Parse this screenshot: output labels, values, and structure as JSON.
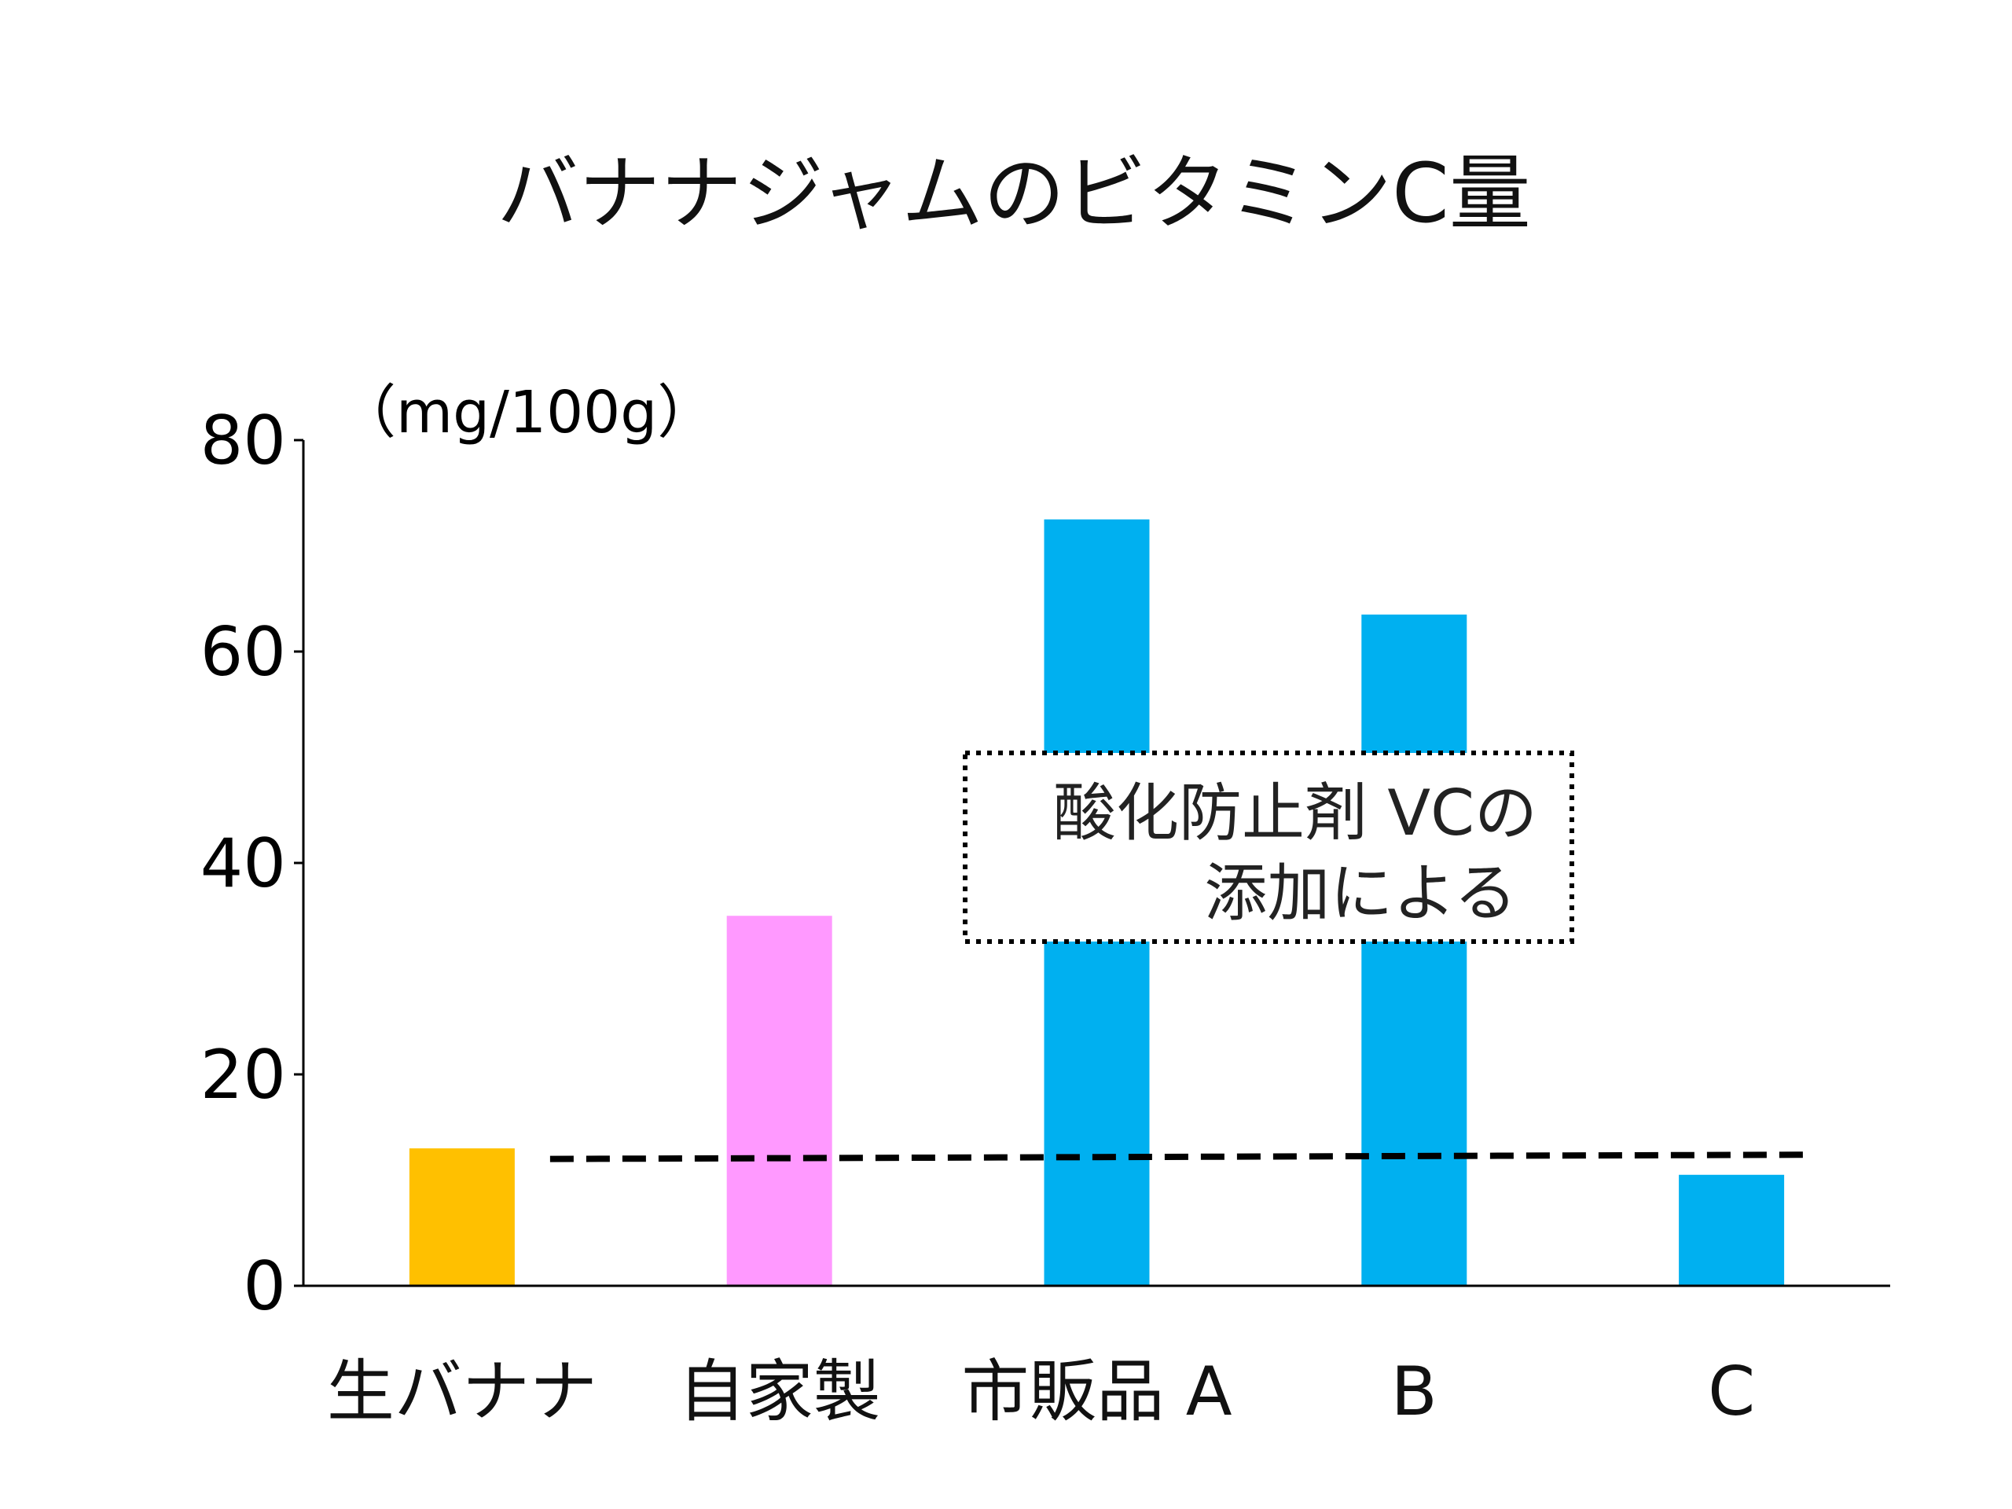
{
  "chart_data": {
    "type": "bar",
    "title": "バナナジャムのビタミンC量",
    "unit_label": "（mg/100g）",
    "categories": [
      "生バナナ",
      "自家製",
      "市販品 A",
      "B",
      "C"
    ],
    "values": [
      13,
      35,
      72.5,
      63.5,
      10.5
    ],
    "bar_colors": [
      "#FFC000",
      "#FF99FF",
      "#00B0F0",
      "#00B0F0",
      "#00B0F0"
    ],
    "ylim": [
      0,
      80
    ],
    "yticks": [
      "0",
      "20",
      "40",
      "60",
      "80"
    ],
    "ytick_values": [
      0,
      20,
      40,
      60,
      80
    ],
    "grid": false,
    "reference_line": {
      "style": "dashed",
      "y_start": 12,
      "y_end": 12.4,
      "color": "#000000"
    },
    "annotation": {
      "lines": [
        "酸化防止剤 VCの",
        "添加による"
      ],
      "border": "dotted"
    }
  }
}
